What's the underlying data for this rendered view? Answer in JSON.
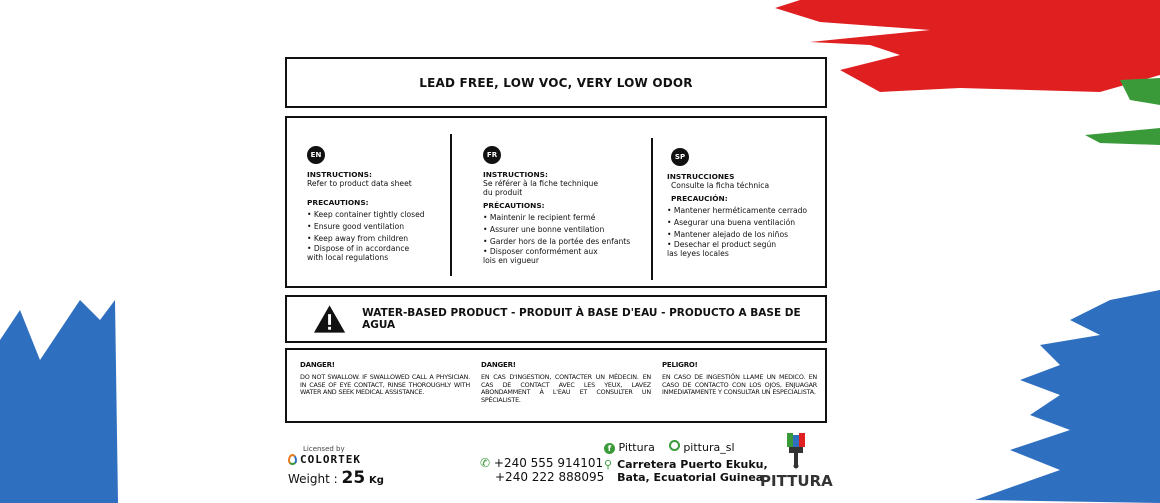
{
  "colors": {
    "red": "#e02020",
    "green": "#3a9a3a",
    "blue": "#2f6fc0"
  },
  "headline": "LEAD FREE, LOW VOC, VERY LOW ODOR",
  "languages": [
    {
      "code": "EN",
      "instructions_title": "INSTRUCTIONS:",
      "instructions": [
        "Refer to product data sheet"
      ],
      "precautions_title": "PRECAUTIONS:",
      "precautions": [
        "Keep container tightly closed",
        "Ensure good ventilation",
        "Keep away from children",
        "Dispose of in accordance with local regulations"
      ]
    },
    {
      "code": "FR",
      "instructions_title": "INSTRUCTIONS:",
      "instructions": [
        "Se référer à la fiche technique du produit"
      ],
      "precautions_title": "PRÉCAUTIONS:",
      "precautions": [
        "Maintenir le recipient fermé",
        "Assurer une bonne ventilation",
        "Garder hors de la portée des enfants",
        "Disposer conformément aux lois en vigueur"
      ]
    },
    {
      "code": "SP",
      "instructions_title": "INSTRUCCIONES",
      "instructions": [
        "Consulte la ficha téchnica"
      ],
      "precautions_title": "PRECAUCIÓN:",
      "precautions": [
        "Mantener herméticamente cerrado",
        "Asegurar una buena ventilación",
        "Mantener alejado de los niños",
        "Desechar el product según las leyes locales"
      ]
    }
  ],
  "warning": {
    "icon": "warning-triangle-icon",
    "text": "WATER-BASED PRODUCT - PRODUIT À BASE D'EAU - PRODUCTO A BASE DE AGUA"
  },
  "danger": [
    {
      "title": "DANGER!",
      "text": "DO NOT SWALLOW. IF SWALLOWED CALL A PHYSICIAN. IN CASE OF EYE CONTACT, RINSE THOROUGHLY WITH WATER AND SEEK MEDICAL ASSISTANCE."
    },
    {
      "title": "DANGER!",
      "text": "EN CAS D'INGESTION, CONTACTER UN MÉDECIN. EN CAS DE CONTACT AVEC LES YEUX, LAVEZ ABONDAMMENT À L'EAU ET CONSULTER UN SPÉCIALISTE."
    },
    {
      "title": "PELIGRO!",
      "text": "EN CASO DE INGESTIÓN LLAME UN MEDICO. EN CASO DE CONTACTO CON LOS OJOS, ENJUAGAR INMEDIATAMENTE Y CONSULTAR UN ESPECIALISTA."
    }
  ],
  "footer": {
    "licensed_by": "Licensed by",
    "licensor": "COLORTEK",
    "weight_label": "Weight :",
    "weight_value": "25",
    "weight_unit": "Kg",
    "phones": [
      "+240 555 914101",
      "+240 222 888095"
    ],
    "facebook": "Pittura",
    "instagram": "pittura_sl",
    "address": [
      "Carretera Puerto Ekuku,",
      "Bata, Ecuatorial Guinea"
    ],
    "brand": "PITTURA"
  }
}
